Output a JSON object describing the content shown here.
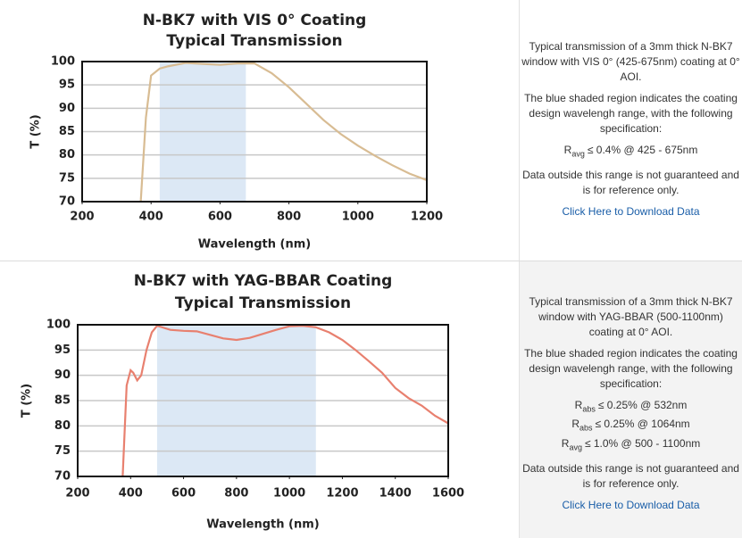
{
  "chart_data": [
    {
      "type": "line",
      "title": "N-BK7 with VIS 0° Coating",
      "subtitle": "Typical Transmission",
      "x_label": "Wavelength (nm)",
      "y_label": "T (%)",
      "xlim": [
        200,
        1200
      ],
      "xticks": [
        200,
        400,
        600,
        800,
        1000,
        1200
      ],
      "ylim": [
        70,
        100
      ],
      "yticks": [
        70,
        75,
        80,
        85,
        90,
        95,
        100
      ],
      "grid": true,
      "region": [
        425,
        675
      ],
      "region_color": "#dce8f5",
      "x": [
        370,
        385,
        400,
        425,
        450,
        500,
        550,
        600,
        650,
        700,
        750,
        800,
        850,
        900,
        950,
        1000,
        1050,
        1100,
        1150,
        1200
      ],
      "series": [
        {
          "color": "#d8bc93",
          "values": [
            70,
            88,
            97,
            98.5,
            99,
            99.7,
            99.5,
            99.3,
            99.6,
            99.6,
            97.5,
            94.5,
            91,
            87.5,
            84.5,
            82,
            79.8,
            77.8,
            76,
            74.6
          ]
        }
      ]
    },
    {
      "type": "line",
      "title": "N-BK7 with YAG-BBAR Coating",
      "subtitle": "Typical Transmission",
      "x_label": "Wavelength (nm)",
      "y_label": "T (%)",
      "xlim": [
        200,
        1600
      ],
      "xticks": [
        200,
        400,
        600,
        800,
        1000,
        1200,
        1400,
        1600
      ],
      "ylim": [
        70,
        100
      ],
      "yticks": [
        70,
        75,
        80,
        85,
        90,
        95,
        100
      ],
      "grid": true,
      "region": [
        500,
        1100
      ],
      "region_color": "#dce8f5",
      "x": [
        370,
        385,
        400,
        410,
        425,
        440,
        460,
        480,
        500,
        550,
        600,
        650,
        700,
        750,
        800,
        850,
        900,
        950,
        1000,
        1050,
        1100,
        1150,
        1200,
        1250,
        1300,
        1350,
        1400,
        1450,
        1500,
        1550,
        1600
      ],
      "series": [
        {
          "color": "#e8806f",
          "values": [
            70,
            88,
            91,
            90.5,
            89,
            90,
            95,
            98.5,
            99.8,
            99,
            98.8,
            98.7,
            98,
            97.3,
            97,
            97.4,
            98.2,
            99,
            99.7,
            99.8,
            99.5,
            98.5,
            97,
            95,
            92.8,
            90.5,
            87.5,
            85.5,
            84,
            82,
            80.5
          ]
        }
      ]
    }
  ],
  "panels": [
    {
      "description": "Typical transmission of a 3mm thick N-BK7 window with VIS 0° (425-675nm) coating at 0° AOI.",
      "region_note": "The blue shaded region indicates the coating design wavelengh range, with the following specification:",
      "specs": [
        {
          "symbol": "R",
          "sub": "avg",
          "text": "≤ 0.4% @ 425 - 675nm"
        }
      ],
      "disclaimer": "Data outside this range is not guaranteed and is for reference only.",
      "link": "Click Here to Download Data"
    },
    {
      "description": "Typical transmission of a 3mm thick N-BK7 window with YAG-BBAR (500-1100nm) coating at 0° AOI.",
      "region_note": "The blue shaded region indicates the coating design wavelengh range, with the following specification:",
      "specs": [
        {
          "symbol": "R",
          "sub": "abs",
          "text": "≤ 0.25% @ 532nm"
        },
        {
          "symbol": "R",
          "sub": "abs",
          "text": "≤ 0.25% @ 1064nm"
        },
        {
          "symbol": "R",
          "sub": "avg",
          "text": "≤ 1.0% @ 500 - 1100nm"
        }
      ],
      "disclaimer": "Data outside this range is not guaranteed and is for reference only.",
      "link": "Click Here to Download Data"
    }
  ]
}
